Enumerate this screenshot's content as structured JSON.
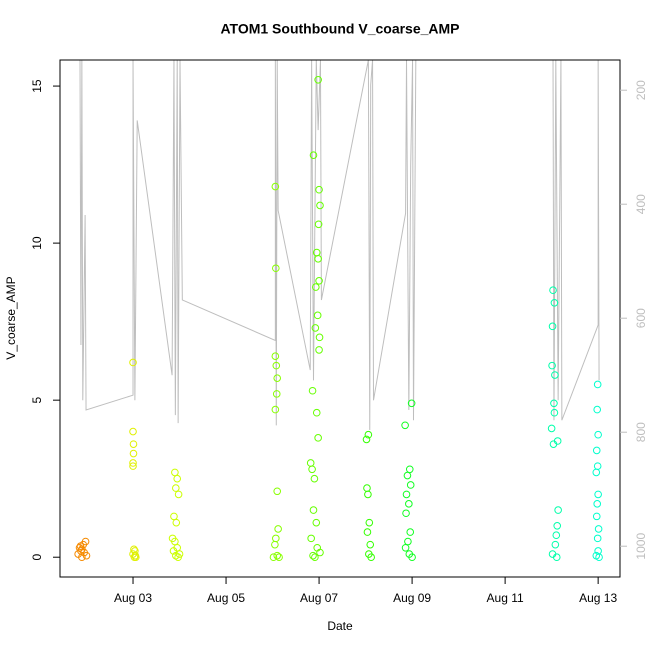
{
  "chart_data": {
    "type": "scatter",
    "title": "ATOM1 Southbound V_coarse_AMP",
    "x_label": "Date",
    "y_label": "V_coarse_AMP",
    "xlim": [
      1.43,
      13.47
    ],
    "xticks": [
      {
        "value": 3,
        "label": "Aug 03"
      },
      {
        "value": 5,
        "label": "Aug 05"
      },
      {
        "value": 7,
        "label": "Aug 07"
      },
      {
        "value": 9,
        "label": "Aug 09"
      },
      {
        "value": 11,
        "label": "Aug 11"
      },
      {
        "value": 13,
        "label": "Aug 13"
      }
    ],
    "ylim": [
      -0.63,
      15.83
    ],
    "yticks": [
      0,
      5,
      10,
      15
    ],
    "y2lim": [
      1054,
      147
    ],
    "y2ticks": [
      200,
      400,
      600,
      800,
      1000
    ],
    "series": [
      {
        "type": "line",
        "axis": "y2",
        "color": "#bebebe",
        "x": [
          1.86,
          1.88,
          1.9,
          1.92,
          1.97,
          1.99,
          3.0,
          3.0,
          3.04,
          3.09,
          3.84,
          3.88,
          3.91,
          3.95,
          3.97,
          4.01,
          4.06,
          6.06,
          6.06,
          6.08,
          6.1,
          6.12,
          6.81,
          6.84,
          6.88,
          6.94,
          6.98,
          7.03,
          7.05,
          8.06,
          8.09,
          8.11,
          8.15,
          8.17,
          8.86,
          8.88,
          8.93,
          8.97,
          9.01,
          9.03,
          9.08,
          12.03,
          12.05,
          12.09,
          12.14,
          12.2,
          12.22,
          13.0,
          13.0,
          13.02
        ],
        "values": [
          147,
          647,
          147,
          744,
          419,
          761,
          735,
          147,
          744,
          253,
          700,
          147,
          770,
          147,
          784,
          147,
          568,
          639,
          147,
          788,
          147,
          411,
          691,
          147,
          709,
          147,
          270,
          147,
          568,
          147,
          796,
          191,
          147,
          744,
          416,
          147,
          761,
          332,
          147,
          779,
          147,
          147,
          779,
          147,
          744,
          147,
          779,
          612,
          147,
          709
        ]
      },
      {
        "color": "#f58a00",
        "x": [
          1.82,
          1.85,
          1.88,
          1.9,
          1.93,
          1.95,
          1.98,
          2.0,
          1.87,
          1.9
        ],
        "values": [
          0.1,
          0.3,
          0.2,
          0.0,
          0.4,
          0.15,
          0.5,
          0.05,
          0.35,
          0.25
        ]
      },
      {
        "color": "#e0f000",
        "x": [
          3.0,
          3.0,
          3.01,
          3.01,
          3.0,
          3.0,
          3.02,
          3.04,
          3.0,
          3.05,
          3.03,
          3.06
        ],
        "values": [
          6.2,
          4.0,
          3.6,
          3.3,
          3.0,
          2.9,
          0.25,
          0.2,
          0.1,
          0.05,
          0,
          0
        ]
      },
      {
        "color": "#ccff00",
        "x": [
          3.9,
          3.95,
          3.92,
          3.98,
          3.88,
          3.93,
          3.85,
          3.9,
          3.95,
          3.87,
          4.0,
          3.92,
          3.97
        ],
        "values": [
          2.7,
          2.5,
          2.2,
          2.0,
          1.3,
          1.1,
          0.6,
          0.5,
          0.3,
          0.2,
          0.1,
          0.05,
          0
        ]
      },
      {
        "color": "#88ff00",
        "x": [
          6.06,
          6.07,
          6.06,
          6.08,
          6.1,
          6.09,
          6.06,
          6.1,
          6.12,
          6.07,
          6.05,
          6.1,
          6.14,
          6.02
        ],
        "values": [
          11.8,
          9.2,
          6.4,
          6.1,
          5.7,
          5.2,
          4.7,
          2.1,
          0.9,
          0.6,
          0.4,
          0.05,
          0,
          0
        ]
      },
      {
        "color": "#66ff00",
        "x": [
          6.98,
          6.88,
          7.0,
          7.02,
          6.99,
          6.95,
          6.98,
          7.0,
          6.93,
          6.97,
          6.92,
          7.01,
          7.0,
          6.86,
          6.95,
          6.98,
          6.82,
          6.85,
          6.9,
          6.88,
          6.94,
          6.83,
          6.96,
          7.02,
          6.87,
          6.91
        ],
        "values": [
          15.2,
          12.8,
          11.7,
          11.2,
          10.6,
          9.7,
          9.5,
          8.8,
          8.6,
          7.7,
          7.3,
          7.0,
          6.6,
          5.3,
          4.6,
          3.8,
          3.0,
          2.8,
          2.5,
          1.5,
          1.1,
          0.6,
          0.3,
          0.15,
          0.05,
          0
        ]
      },
      {
        "color": "#33ff00",
        "x": [
          8.06,
          8.02,
          8.03,
          8.05,
          8.08,
          8.04,
          8.1,
          8.07,
          8.12
        ],
        "values": [
          3.9,
          3.75,
          2.2,
          2.0,
          1.1,
          0.8,
          0.4,
          0.1,
          0
        ]
      },
      {
        "color": "#11ff22",
        "x": [
          8.99,
          8.85,
          8.95,
          8.9,
          8.97,
          8.88,
          8.93,
          8.87,
          8.96,
          8.91,
          8.86,
          8.94,
          9.0
        ],
        "values": [
          4.9,
          4.2,
          2.8,
          2.6,
          2.3,
          2.0,
          1.7,
          1.4,
          0.8,
          0.5,
          0.3,
          0.1,
          0
        ]
      },
      {
        "color": "#00ffaa",
        "x": [
          12.03,
          12.06,
          12.02,
          12.01,
          12.07,
          12.05,
          12.06,
          12.0,
          12.13,
          12.04,
          12.14,
          12.12,
          12.1,
          12.08,
          12.02,
          12.11
        ],
        "values": [
          8.5,
          8.1,
          7.35,
          6.1,
          5.8,
          4.9,
          4.6,
          4.1,
          3.7,
          3.6,
          1.5,
          1.0,
          0.7,
          0.4,
          0.1,
          0
        ]
      },
      {
        "color": "#00ffcc",
        "x": [
          12.99,
          12.98,
          13.0,
          12.97,
          12.99,
          12.96,
          13.0,
          12.98,
          12.97,
          13.01,
          12.99,
          13.0,
          12.96,
          13.02
        ],
        "values": [
          5.5,
          4.7,
          3.9,
          3.4,
          2.9,
          2.7,
          2.0,
          1.7,
          1.3,
          0.9,
          0.6,
          0.2,
          0.05,
          0
        ]
      }
    ]
  }
}
